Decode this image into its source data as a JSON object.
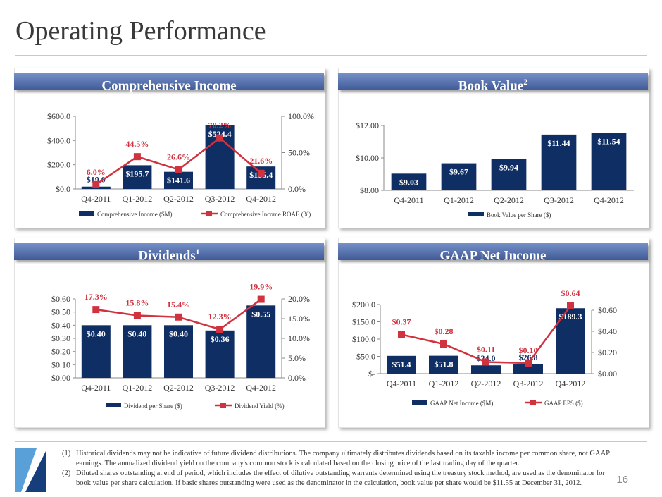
{
  "title": "Operating Performance",
  "page_number": "16",
  "colors": {
    "bar": "#0f2e64",
    "line": "#d0323f",
    "header": "#4a66a3"
  },
  "panels": [
    {
      "title": "Comprehensive Income",
      "sup": ""
    },
    {
      "title": "Book Value",
      "sup": "2"
    },
    {
      "title": "Dividends",
      "sup": "1"
    },
    {
      "title": "GAAP Net Income",
      "sup": ""
    }
  ],
  "footnotes": [
    {
      "num": "(1)",
      "text": "Historical dividends may not be indicative of future dividend distributions.  The company ultimately distributes dividends based on its taxable income per common share, not GAAP earnings. The annualized dividend yield on the company's common stock is calculated based on the closing price of the last trading day of the quarter."
    },
    {
      "num": "(2)",
      "text": "Diluted shares outstanding at end of period, which includes the effect of dilutive outstanding warrants determined using the treasury stock method, are used as the denominator for book value per share calculation. If basic shares outstanding were used as the denominator in the calculation, book value per share would be $11.55 at December 31, 2012."
    }
  ],
  "chart_data": [
    {
      "type": "bar+line",
      "categories": [
        "Q4-2011",
        "Q1-2012",
        "Q2-2012",
        "Q3-2012",
        "Q4-2012"
      ],
      "bar": {
        "name": "Comprehensive Income ($M)",
        "values": [
          19.0,
          195.7,
          141.6,
          524.4,
          185.4
        ],
        "labels": [
          "$19.0",
          "$195.7",
          "$141.6",
          "$524.4",
          "$185.4"
        ]
      },
      "line": {
        "name": "Comprehensive Income ROAE (%)",
        "values": [
          6.0,
          44.5,
          26.6,
          70.2,
          21.6
        ],
        "labels": [
          "6.0%",
          "44.5%",
          "26.6%",
          "70.2%",
          "21.6%"
        ]
      },
      "ylim": [
        0,
        600
      ],
      "yticks": [
        0,
        200,
        400,
        600
      ],
      "yticklabels": [
        "$0.0",
        "$200.0",
        "$400.0",
        "$600.0"
      ],
      "y2lim": [
        0,
        100
      ],
      "y2ticks": [
        0,
        50,
        100
      ],
      "y2ticklabels": [
        "0.0%",
        "50.0%",
        "100.0%"
      ],
      "legend": "bottom"
    },
    {
      "type": "bar",
      "categories": [
        "Q4-2011",
        "Q1-2012",
        "Q2-2012",
        "Q3-2012",
        "Q4-2012"
      ],
      "bar": {
        "name": "Book Value per Share ($)",
        "values": [
          9.03,
          9.67,
          9.94,
          11.44,
          11.54
        ],
        "labels": [
          "$9.03",
          "$9.67",
          "$9.94",
          "$11.44",
          "$11.54"
        ]
      },
      "ylim": [
        8,
        12
      ],
      "yticks": [
        8,
        10,
        12
      ],
      "yticklabels": [
        "$8.00",
        "$10.00",
        "$12.00"
      ],
      "legend": "bottom"
    },
    {
      "type": "bar+line",
      "categories": [
        "Q4-2011",
        "Q1-2012",
        "Q2-2012",
        "Q3-2012",
        "Q4-2012"
      ],
      "bar": {
        "name": "Dividend per Share ($)",
        "values": [
          0.4,
          0.4,
          0.4,
          0.36,
          0.55
        ],
        "labels": [
          "$0.40",
          "$0.40",
          "$0.40",
          "$0.36",
          "$0.55"
        ]
      },
      "line": {
        "name": "Dividend Yield (%)",
        "values": [
          17.3,
          15.8,
          15.4,
          12.3,
          19.9
        ],
        "labels": [
          "17.3%",
          "15.8%",
          "15.4%",
          "12.3%",
          "19.9%"
        ]
      },
      "ylim": [
        0,
        0.6
      ],
      "yticks": [
        0,
        0.1,
        0.2,
        0.3,
        0.4,
        0.5,
        0.6
      ],
      "yticklabels": [
        "$0.00",
        "$0.10",
        "$0.20",
        "$0.30",
        "$0.40",
        "$0.50",
        "$0.60"
      ],
      "y2lim": [
        0,
        20
      ],
      "y2ticks": [
        0,
        5,
        10,
        15,
        20
      ],
      "y2ticklabels": [
        "0.0%",
        "5.0%",
        "10.0%",
        "15.0%",
        "20.0%"
      ],
      "legend": "bottom"
    },
    {
      "type": "bar+line",
      "categories": [
        "Q4-2011",
        "Q1-2012",
        "Q2-2012",
        "Q3-2012",
        "Q4-2012"
      ],
      "bar": {
        "name": "GAAP Net Income ($M)",
        "values": [
          51.4,
          51.8,
          24.0,
          26.8,
          189.3
        ],
        "labels": [
          "$51.4",
          "$51.8",
          "$24.0",
          "$26.8",
          "$189.3"
        ]
      },
      "line": {
        "name": "GAAP EPS ($)",
        "values": [
          0.37,
          0.28,
          0.11,
          0.1,
          0.64
        ],
        "labels": [
          "$0.37",
          "$0.28",
          "$0.11",
          "$0.10",
          "$0.64"
        ]
      },
      "ylim": [
        0,
        200
      ],
      "yticks": [
        0,
        50,
        100,
        150,
        200
      ],
      "yticklabels": [
        "$-",
        "$50.0",
        "$100.0",
        "$150.0",
        "$200.0"
      ],
      "y2lim": [
        0,
        0.6
      ],
      "y2ticks": [
        0,
        0.2,
        0.4,
        0.6
      ],
      "y2ticklabels": [
        "$0.00",
        "$0.20",
        "$0.40",
        "$0.60"
      ],
      "legend": "bottom"
    }
  ]
}
